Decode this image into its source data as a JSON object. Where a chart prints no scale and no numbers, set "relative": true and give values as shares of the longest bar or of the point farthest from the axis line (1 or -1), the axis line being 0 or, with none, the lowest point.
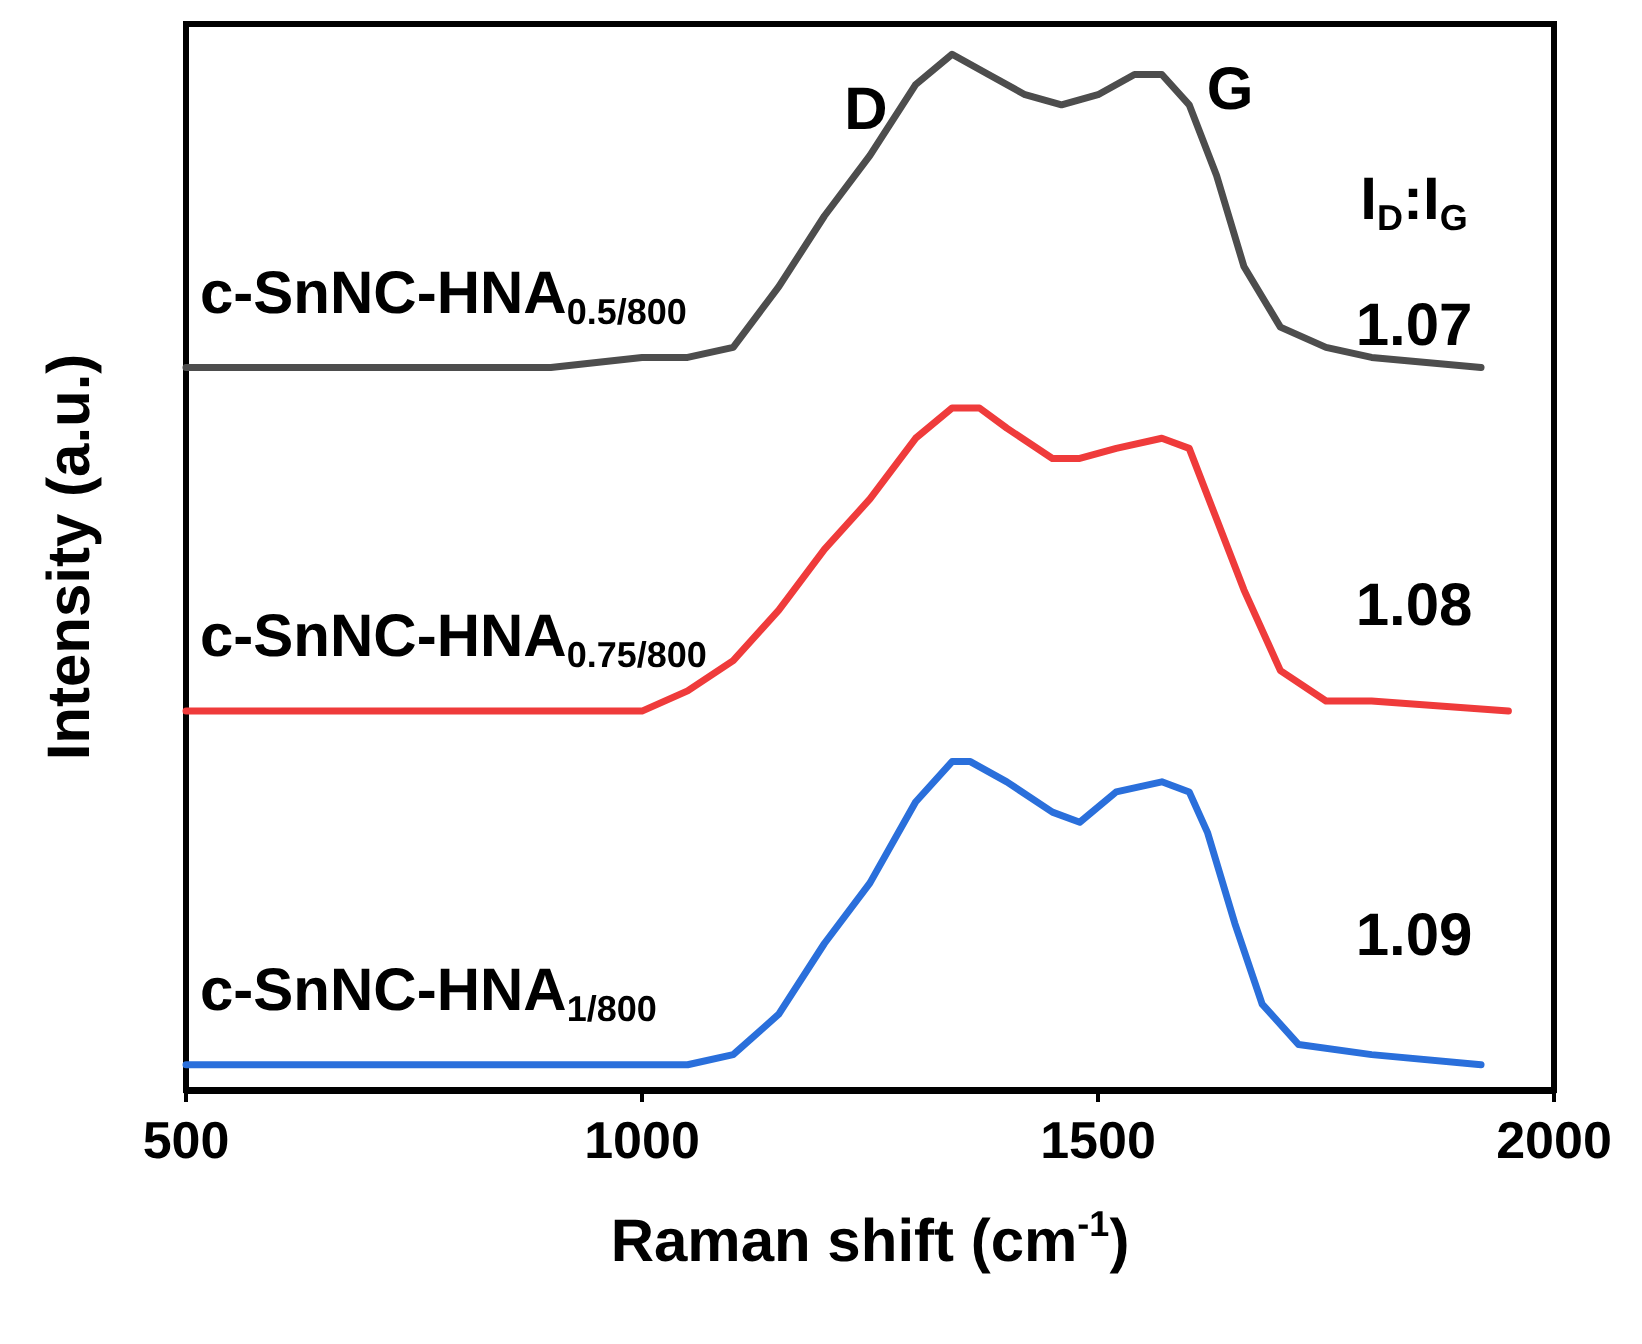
{
  "chart_data": {
    "type": "line",
    "xlabel": "Raman shift (cm$^{-1}$)",
    "ylabel": "Intensity (a.u.)",
    "relative": true,
    "xlim": [
      500,
      2000
    ],
    "xticks": [
      500,
      1000,
      1500,
      2000
    ],
    "grid": false,
    "marker": "none",
    "line_style": "solid",
    "series": [
      {
        "name": "c-SnNC-HNA$_{0.5/800}$",
        "color": "#4d4d4d",
        "x": [
          500,
          600,
          700,
          800,
          900,
          1000,
          1050,
          1100,
          1150,
          1200,
          1250,
          1300,
          1340,
          1380,
          1420,
          1460,
          1500,
          1540,
          1570,
          1600,
          1630,
          1660,
          1700,
          1750,
          1800,
          1920
        ],
        "values": [
          0.69,
          0.69,
          0.69,
          0.69,
          0.69,
          0.7,
          0.7,
          0.71,
          0.77,
          0.84,
          0.9,
          0.97,
          1.0,
          0.98,
          0.96,
          0.95,
          0.96,
          0.98,
          0.98,
          0.95,
          0.88,
          0.79,
          0.73,
          0.71,
          0.7,
          0.69
        ]
      },
      {
        "name": "c-SnNC-HNA$_{0.75/800}$",
        "color": "#ef3b3b",
        "x": [
          500,
          600,
          700,
          800,
          900,
          1000,
          1050,
          1100,
          1150,
          1200,
          1250,
          1300,
          1340,
          1370,
          1400,
          1450,
          1480,
          1520,
          1570,
          1600,
          1630,
          1660,
          1700,
          1750,
          1800,
          1950
        ],
        "values": [
          0.35,
          0.35,
          0.35,
          0.35,
          0.35,
          0.35,
          0.37,
          0.4,
          0.45,
          0.51,
          0.56,
          0.62,
          0.65,
          0.65,
          0.63,
          0.6,
          0.6,
          0.61,
          0.62,
          0.61,
          0.54,
          0.47,
          0.39,
          0.36,
          0.36,
          0.35
        ]
      },
      {
        "name": "c-SnNC-HNA$_{1/800}$",
        "color": "#2a6fdb",
        "x": [
          500,
          600,
          700,
          800,
          900,
          1000,
          1050,
          1100,
          1150,
          1200,
          1250,
          1300,
          1340,
          1360,
          1400,
          1450,
          1480,
          1520,
          1570,
          1600,
          1620,
          1650,
          1680,
          1720,
          1800,
          1920
        ],
        "values": [
          0,
          0,
          0,
          0,
          0,
          0,
          0,
          0.01,
          0.05,
          0.12,
          0.18,
          0.26,
          0.3,
          0.3,
          0.28,
          0.25,
          0.24,
          0.27,
          0.28,
          0.27,
          0.23,
          0.14,
          0.06,
          0.02,
          0.01,
          0
        ]
      }
    ],
    "annotations": [
      "D",
      "G",
      "I$_{D}$:I$_{G}$",
      "1.07",
      "1.08",
      "1.09"
    ]
  }
}
